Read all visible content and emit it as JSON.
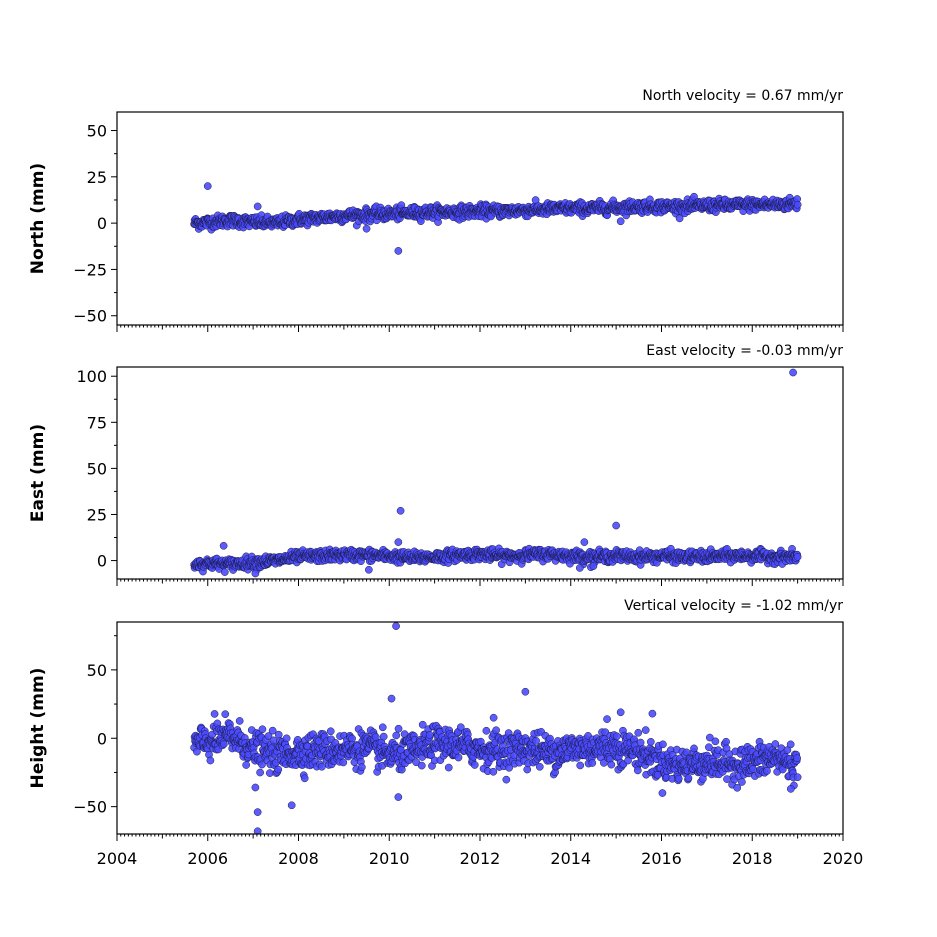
{
  "chart_data": [
    {
      "type": "scatter",
      "title": "North velocity = 0.67 mm/yr",
      "ylabel": "North (mm)",
      "xlabel": "",
      "xlim": [
        2004,
        2020
      ],
      "ylim": [
        -55,
        60
      ],
      "yticks": [
        -50,
        -25,
        0,
        25,
        50
      ],
      "ytick_labels": [
        "−50",
        "−25",
        "0",
        "25",
        "50"
      ],
      "xticks": [
        2004,
        2006,
        2008,
        2010,
        2012,
        2014,
        2016,
        2018,
        2020
      ],
      "xtick_labels": [
        "",
        "",
        "",
        "",
        "",
        "",
        "",
        "",
        ""
      ],
      "color": "#4a4aff",
      "series": [
        {
          "x": [
            2005.7,
            2006.0,
            2006.5,
            2007.0,
            2007.5,
            2008.0,
            2008.5,
            2009.0,
            2009.5,
            2010.0,
            2010.5,
            2011.0,
            2011.5,
            2012.0,
            2012.5,
            2013.0,
            2013.5,
            2014.0,
            2014.5,
            2015.0,
            2015.5,
            2016.0,
            2016.5,
            2017.0,
            2017.5,
            2018.0,
            2018.5,
            2019.0
          ],
          "y": [
            0.0,
            0.5,
            1.5,
            0.5,
            0.0,
            2.0,
            3.0,
            4.0,
            4.5,
            5.0,
            5.5,
            6.0,
            6.0,
            6.5,
            6.5,
            7.0,
            7.5,
            8.0,
            8.0,
            8.5,
            9.0,
            9.0,
            9.0,
            9.5,
            9.5,
            10.0,
            10.0,
            10.5
          ]
        },
        {
          "x": [
            2006.0,
            2007.1,
            2009.5,
            2010.2,
            2015.1
          ],
          "y": [
            20,
            9,
            -3,
            -15,
            1
          ]
        }
      ]
    },
    {
      "type": "scatter",
      "title": "East velocity = -0.03 mm/yr",
      "ylabel": "East (mm)",
      "xlabel": "",
      "xlim": [
        2004,
        2020
      ],
      "ylim": [
        -10,
        105
      ],
      "yticks": [
        0,
        25,
        50,
        75,
        100
      ],
      "ytick_labels": [
        "0",
        "25",
        "50",
        "75",
        "100"
      ],
      "xticks": [
        2004,
        2006,
        2008,
        2010,
        2012,
        2014,
        2016,
        2018,
        2020
      ],
      "xtick_labels": [
        "",
        "",
        "",
        "",
        "",
        "",
        "",
        "",
        ""
      ],
      "color": "#4a4aff",
      "series": [
        {
          "x": [
            2005.7,
            2006.0,
            2006.5,
            2007.0,
            2007.5,
            2008.0,
            2008.5,
            2009.0,
            2009.5,
            2010.0,
            2010.5,
            2011.0,
            2011.5,
            2012.0,
            2012.5,
            2013.0,
            2013.5,
            2014.0,
            2014.5,
            2015.0,
            2015.5,
            2016.0,
            2016.5,
            2017.0,
            2017.5,
            2018.0,
            2018.5,
            2019.0
          ],
          "y": [
            -2.0,
            -1.5,
            -2.0,
            -1.0,
            0.0,
            2.0,
            2.5,
            3.0,
            3.0,
            2.5,
            1.5,
            2.0,
            3.0,
            3.5,
            2.5,
            3.0,
            3.5,
            2.5,
            2.0,
            2.5,
            2.0,
            2.5,
            2.0,
            2.0,
            2.5,
            2.5,
            2.0,
            2.0
          ]
        },
        {
          "x": [
            2006.35,
            2007.05,
            2009.55,
            2010.2,
            2010.25,
            2014.2,
            2014.3,
            2014.5,
            2015.0,
            2018.9
          ],
          "y": [
            8,
            -7,
            -5,
            10,
            27,
            -4,
            10,
            -3,
            19,
            102
          ]
        }
      ]
    },
    {
      "type": "scatter",
      "title": "Vertical velocity = -1.02 mm/yr",
      "ylabel": "Height (mm)",
      "xlabel": "",
      "xlim": [
        2004,
        2020
      ],
      "ylim": [
        -70,
        85
      ],
      "yticks": [
        -50,
        0,
        50
      ],
      "ytick_labels": [
        "−50",
        "0",
        "50"
      ],
      "xticks": [
        2004,
        2006,
        2008,
        2010,
        2012,
        2014,
        2016,
        2018,
        2020
      ],
      "xtick_labels": [
        "2004",
        "2006",
        "2008",
        "2010",
        "2012",
        "2014",
        "2016",
        "2018",
        "2020"
      ],
      "color": "#4a4aff",
      "series": [
        {
          "x": [
            2005.7,
            2006.0,
            2006.5,
            2007.0,
            2007.5,
            2008.0,
            2008.5,
            2009.0,
            2009.5,
            2010.0,
            2010.5,
            2011.0,
            2011.5,
            2012.0,
            2012.5,
            2013.0,
            2013.5,
            2014.0,
            2014.5,
            2015.0,
            2015.5,
            2016.0,
            2016.5,
            2017.0,
            2017.5,
            2018.0,
            2018.5,
            2019.0
          ],
          "y": [
            -5,
            -3,
            2,
            -8,
            -12,
            -10,
            -9,
            -8,
            -7,
            -12,
            -10,
            -4,
            -5,
            -8,
            -9,
            -7,
            -10,
            -8,
            -7,
            -6,
            -10,
            -18,
            -20,
            -17,
            -19,
            -18,
            -14,
            -20
          ]
        },
        {
          "x": [
            2007.05,
            2007.1,
            2007.1,
            2007.85,
            2010.05,
            2010.15,
            2010.2,
            2012.3,
            2013.0,
            2014.8,
            2015.1,
            2015.8,
            2018.85
          ],
          "y": [
            -36,
            -54,
            -68,
            -49,
            29,
            82,
            -43,
            15,
            34,
            14,
            19,
            18,
            -37
          ]
        }
      ]
    }
  ]
}
